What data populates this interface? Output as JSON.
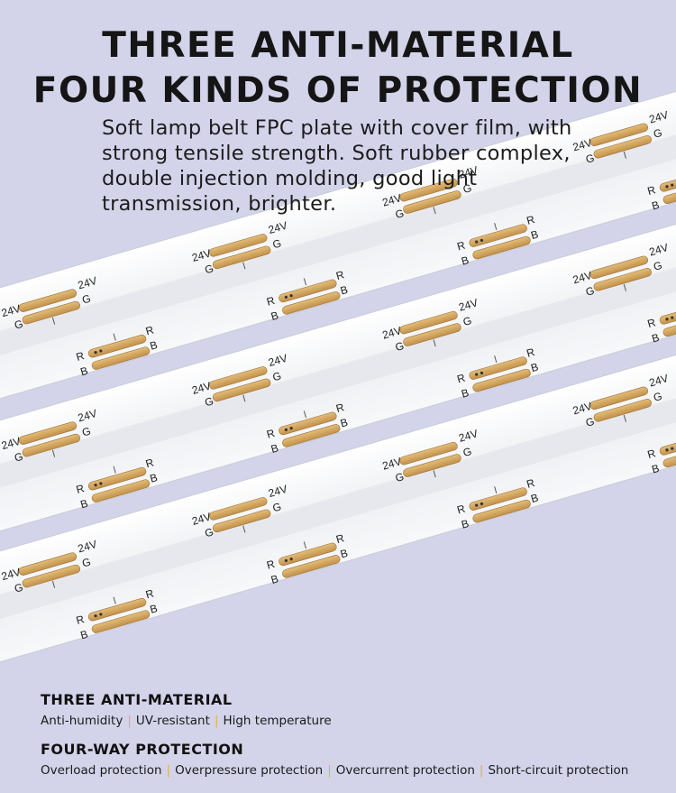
{
  "headline": {
    "line1": "THREE ANTI-MATERIAL",
    "line2": "FOUR KINDS OF PROTECTION"
  },
  "description": "Soft lamp belt FPC plate with cover film, with strong tensile strength. Soft rubber complex, double injection molding, good light transmission, brighter.",
  "strip_labels": {
    "voltage": "24V",
    "green": "G",
    "red": "R",
    "blue": "B"
  },
  "sections": [
    {
      "title": "THREE ANTI-MATERIAL",
      "items": [
        "Anti-humidity",
        "UV-resistant",
        "High temperature"
      ]
    },
    {
      "title": "FOUR-WAY PROTECTION",
      "items": [
        "Overload protection",
        "Overpressure protection",
        "Overcurrent protection",
        "Short-circuit protection"
      ]
    }
  ],
  "colors": {
    "background": "#d3d4ea",
    "strip": "#f4f5f7",
    "copper_pad": "#d4a85a",
    "separator": "#e8b12c"
  }
}
